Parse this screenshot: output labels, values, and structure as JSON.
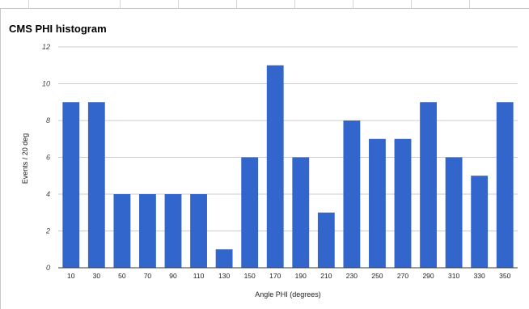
{
  "chart_data": {
    "type": "bar",
    "title": "CMS PHI histogram",
    "xlabel": "Angle PHI (degrees)",
    "ylabel": "Events / 20 deg",
    "categories": [
      "10",
      "30",
      "50",
      "70",
      "90",
      "110",
      "130",
      "150",
      "170",
      "190",
      "210",
      "230",
      "250",
      "270",
      "290",
      "310",
      "330",
      "350"
    ],
    "values": [
      9,
      9,
      4,
      4,
      4,
      4,
      1,
      6,
      11,
      6,
      3,
      8,
      7,
      7,
      9,
      6,
      5,
      9
    ],
    "ylim": [
      0,
      12
    ],
    "yticks": [
      0,
      2,
      4,
      6,
      8,
      10,
      12
    ],
    "grid": true,
    "legend": "none",
    "bar_color": "#3366cc"
  }
}
